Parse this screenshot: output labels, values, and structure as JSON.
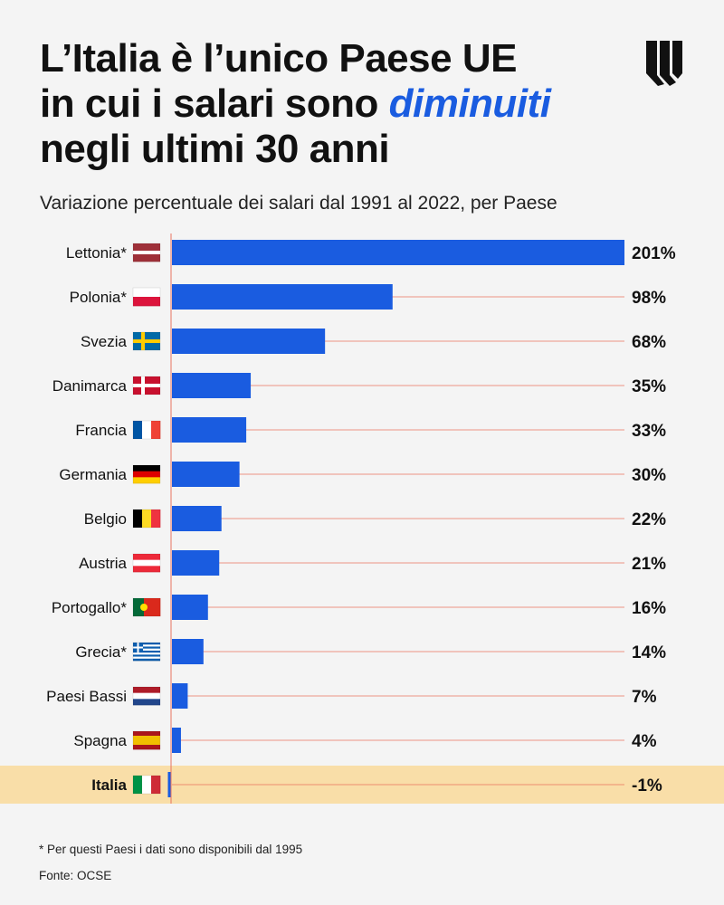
{
  "title": {
    "line1": "L’Italia è l’unico Paese UE",
    "line2_prefix": "in cui i salari sono ",
    "line2_highlight": "diminuiti",
    "line3": "negli ultimi 30 anni"
  },
  "logo_icon": "brand-w-logo",
  "subtitle": "Variazione percentuale dei salari dal 1991 al 2022, per Paese",
  "chart_data": {
    "type": "bar",
    "orientation": "horizontal",
    "title": "Variazione percentuale dei salari dal 1991 al 2022, per Paese",
    "unit": "%",
    "categories": [
      "Lettonia*",
      "Polonia*",
      "Svezia",
      "Danimarca",
      "Francia",
      "Germania",
      "Belgio",
      "Austria",
      "Portogallo*",
      "Grecia*",
      "Paesi Bassi",
      "Spagna",
      "Italia"
    ],
    "values": [
      201,
      98,
      68,
      35,
      33,
      30,
      22,
      21,
      16,
      14,
      7,
      4,
      -1
    ],
    "labels": [
      "201%",
      "98%",
      "68%",
      "35%",
      "33%",
      "30%",
      "22%",
      "21%",
      "16%",
      "14%",
      "7%",
      "4%",
      "-1%"
    ],
    "flags": [
      "flag-latvia",
      "flag-poland",
      "flag-sweden",
      "flag-denmark",
      "flag-france",
      "flag-germany",
      "flag-belgium",
      "flag-austria",
      "flag-portugal",
      "flag-greece",
      "flag-netherlands",
      "flag-spain",
      "flag-italy"
    ],
    "highlight": "Italia",
    "xlim": [
      -1,
      201
    ]
  },
  "colors": {
    "bar": "#1a5ce0",
    "axis": "#e8735f",
    "highlight": "#f9dea8",
    "background": "#f4f4f4"
  },
  "footnote": "* Per questi Paesi i dati sono disponibili dal 1995",
  "source": "Fonte: OCSE"
}
